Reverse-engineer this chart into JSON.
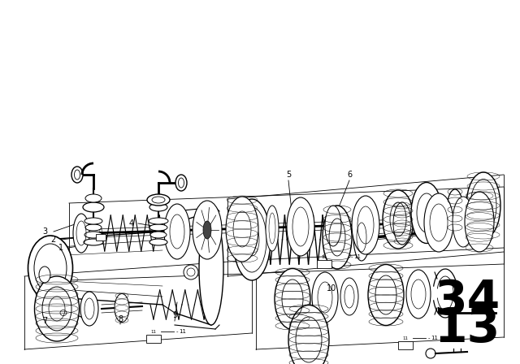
{
  "bg_color": "#ffffff",
  "line_color": "#000000",
  "figsize": [
    6.4,
    4.48
  ],
  "dpi": 100,
  "page_top": "34",
  "page_bot": "13",
  "border_color": "#ffffff"
}
